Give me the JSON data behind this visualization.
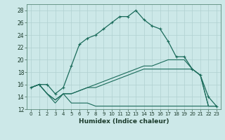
{
  "xlabel": "Humidex (Indice chaleur)",
  "background_color": "#cce8e8",
  "grid_color": "#b0d0d0",
  "line_color": "#1a6b5a",
  "xlim": [
    -0.5,
    23.5
  ],
  "ylim": [
    12,
    29
  ],
  "yticks": [
    12,
    14,
    16,
    18,
    20,
    22,
    24,
    26,
    28
  ],
  "xticks": [
    0,
    1,
    2,
    3,
    4,
    5,
    6,
    7,
    8,
    9,
    10,
    11,
    12,
    13,
    14,
    15,
    16,
    17,
    18,
    19,
    20,
    21,
    22,
    23
  ],
  "line1_x": [
    0,
    1,
    2,
    3,
    4,
    5,
    6,
    7,
    8,
    9,
    10,
    11,
    12,
    13,
    14,
    15,
    16,
    17,
    18,
    19,
    20,
    21,
    22,
    23
  ],
  "line1_y": [
    15.5,
    16.0,
    16.0,
    14.5,
    15.5,
    19.0,
    22.5,
    23.5,
    24.0,
    25.0,
    26.0,
    27.0,
    27.0,
    28.0,
    26.5,
    25.5,
    25.0,
    23.0,
    20.5,
    20.5,
    18.5,
    17.5,
    14.0,
    12.5
  ],
  "line2_x": [
    0,
    1,
    2,
    3,
    4,
    5,
    6,
    7,
    8,
    9,
    10,
    11,
    12,
    13,
    14,
    15,
    16,
    17,
    18,
    19,
    20,
    21,
    22,
    23
  ],
  "line2_y": [
    15.5,
    16.0,
    14.5,
    13.0,
    14.5,
    13.0,
    13.0,
    13.0,
    12.5,
    12.5,
    12.5,
    12.5,
    12.5,
    12.5,
    12.5,
    12.5,
    12.5,
    12.5,
    12.5,
    12.5,
    12.5,
    12.5,
    12.5,
    12.5
  ],
  "line3_x": [
    0,
    1,
    2,
    3,
    4,
    5,
    6,
    7,
    8,
    9,
    10,
    11,
    12,
    13,
    14,
    15,
    16,
    17,
    18,
    19,
    20,
    21,
    22,
    23
  ],
  "line3_y": [
    15.5,
    16.0,
    14.5,
    13.5,
    14.5,
    14.5,
    15.0,
    15.5,
    16.0,
    16.5,
    17.0,
    17.5,
    18.0,
    18.5,
    19.0,
    19.0,
    19.5,
    20.0,
    20.0,
    20.0,
    18.5,
    17.5,
    12.5,
    12.5
  ],
  "line4_x": [
    0,
    1,
    2,
    3,
    4,
    5,
    6,
    7,
    8,
    9,
    10,
    11,
    12,
    13,
    14,
    15,
    16,
    17,
    18,
    19,
    20,
    21,
    22,
    23
  ],
  "line4_y": [
    15.5,
    16.0,
    14.5,
    13.5,
    14.5,
    14.5,
    15.0,
    15.5,
    15.5,
    16.0,
    16.5,
    17.0,
    17.5,
    18.0,
    18.5,
    18.5,
    18.5,
    18.5,
    18.5,
    18.5,
    18.5,
    17.5,
    12.5,
    12.5
  ]
}
